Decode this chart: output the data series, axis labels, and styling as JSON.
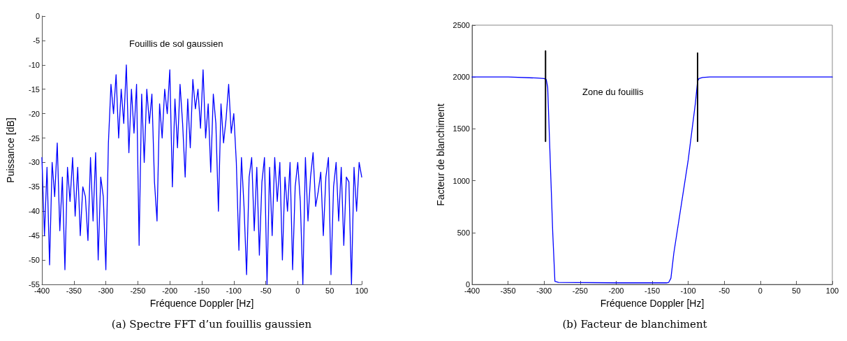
{
  "chart_data": [
    {
      "type": "line",
      "title": "(a) Spectre FFT d’un fouillis gaussien",
      "xlabel": "Fréquence Doppler [Hz]",
      "ylabel": "Puissance [dB]",
      "annotations": [
        "Fouillis de sol gaussien"
      ],
      "xlim": [
        -400,
        100
      ],
      "xticks": [
        -400,
        -350,
        -300,
        -250,
        -200,
        -150,
        -100,
        -50,
        0,
        50,
        100
      ],
      "ylim": [
        -55,
        0
      ],
      "yticks": [
        -55,
        -50,
        -45,
        -40,
        -35,
        -30,
        -25,
        -20,
        -15,
        -10,
        -5,
        0
      ],
      "grid": false,
      "marker": "none",
      "line_style": "solid",
      "series": [
        {
          "color": "#0000ff",
          "x": [
            -400,
            -396,
            -392,
            -388,
            -384,
            -380,
            -376,
            -372,
            -368,
            -364,
            -360,
            -356,
            -352,
            -348,
            -344,
            -340,
            -336,
            -332,
            -328,
            -324,
            -320,
            -316,
            -312,
            -308,
            -304,
            -300,
            -296,
            -292,
            -288,
            -284,
            -280,
            -276,
            -272,
            -268,
            -264,
            -260,
            -256,
            -252,
            -248,
            -244,
            -240,
            -236,
            -232,
            -228,
            -224,
            -220,
            -216,
            -212,
            -208,
            -204,
            -200,
            -196,
            -192,
            -188,
            -184,
            -180,
            -176,
            -172,
            -168,
            -164,
            -160,
            -156,
            -152,
            -148,
            -144,
            -140,
            -136,
            -132,
            -128,
            -124,
            -120,
            -116,
            -112,
            -108,
            -104,
            -100,
            -96,
            -92,
            -88,
            -84,
            -80,
            -76,
            -72,
            -68,
            -64,
            -60,
            -56,
            -52,
            -48,
            -44,
            -40,
            -36,
            -32,
            -28,
            -24,
            -20,
            -16,
            -12,
            -8,
            -4,
            0,
            4,
            8,
            12,
            16,
            20,
            24,
            28,
            32,
            36,
            40,
            44,
            48,
            52,
            56,
            60,
            64,
            68,
            72,
            76,
            80,
            84,
            88,
            92,
            96,
            100
          ],
          "values": [
            -29,
            -45,
            -31,
            -51,
            -30,
            -37,
            -26,
            -44,
            -33,
            -52,
            -31,
            -38,
            -29,
            -41,
            -31,
            -45,
            -35,
            -37,
            -46,
            -29,
            -42,
            -28,
            -50,
            -33,
            -37,
            -52,
            -26,
            -14,
            -20,
            -12,
            -25,
            -15,
            -22,
            -10,
            -28,
            -15,
            -24,
            -14,
            -47,
            -16,
            -30,
            -15,
            -22,
            -16,
            -34,
            -42,
            -18,
            -25,
            -15,
            -20,
            -11,
            -35,
            -17,
            -27,
            -14,
            -22,
            -33,
            -17,
            -27,
            -13,
            -19,
            -15,
            -23,
            -11,
            -25,
            -18,
            -32,
            -16,
            -22,
            -40,
            -18,
            -26,
            -21,
            -14,
            -24,
            -20,
            -30,
            -48,
            -29,
            -39,
            -53,
            -33,
            -29,
            -44,
            -31,
            -49,
            -34,
            -29,
            -55,
            -31,
            -45,
            -29,
            -38,
            -30,
            -50,
            -33,
            -40,
            -30,
            -52,
            -35,
            -30,
            -38,
            -55,
            -29,
            -42,
            -33,
            -28,
            -39,
            -36,
            -32,
            -45,
            -33,
            -29,
            -53,
            -35,
            -30,
            -42,
            -31,
            -47,
            -33,
            -34,
            -55,
            -31,
            -40,
            -30,
            -33
          ]
        }
      ]
    },
    {
      "type": "line",
      "title": "(b) Facteur de blanchiment",
      "xlabel": "Fréquence Doppler [Hz]",
      "ylabel": "Facteur de blanchiment",
      "annotations": [
        "Zone du fouillis"
      ],
      "xlim": [
        -400,
        100
      ],
      "xticks": [
        -400,
        -350,
        -300,
        -250,
        -200,
        -150,
        -100,
        -50,
        0,
        50,
        100
      ],
      "ylim": [
        0,
        2500
      ],
      "yticks": [
        0,
        500,
        1000,
        1500,
        2000,
        2500
      ],
      "grid": false,
      "marker": "none",
      "line_style": "solid",
      "series": [
        {
          "color": "#0000ff",
          "x": [
            -400,
            -350,
            -310,
            -300,
            -297,
            -295,
            -292,
            -288,
            -285,
            -280,
            -200,
            -130,
            -127,
            -124,
            -120,
            -100,
            -90,
            -87,
            -85,
            -80,
            -70,
            0,
            100
          ],
          "values": [
            2000,
            2000,
            1990,
            1985,
            1975,
            1900,
            1300,
            500,
            30,
            20,
            15,
            15,
            20,
            60,
            300,
            1200,
            1750,
            1960,
            1985,
            1995,
            2000,
            2000,
            2000
          ]
        },
        {
          "color": "#000000",
          "x": [
            -298,
            -298
          ],
          "values": [
            1380,
            2250
          ]
        },
        {
          "color": "#000000",
          "x": [
            -87,
            -87
          ],
          "values": [
            1380,
            2230
          ]
        }
      ]
    }
  ]
}
